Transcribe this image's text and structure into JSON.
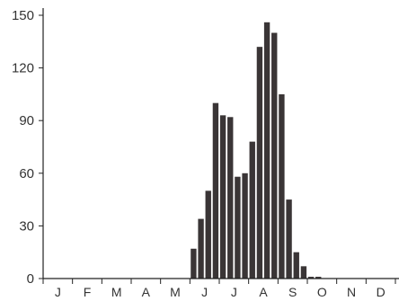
{
  "chart_data": {
    "type": "bar",
    "title": "",
    "xlabel": "",
    "ylabel": "",
    "ylim": [
      0,
      150
    ],
    "yticks": [
      0,
      30,
      60,
      90,
      120,
      150
    ],
    "month_labels": [
      "J",
      "F",
      "M",
      "A",
      "M",
      "J",
      "J",
      "A",
      "S",
      "O",
      "N",
      "D"
    ],
    "bar_color": "#3a3536",
    "axis_color": "#222222",
    "grid": false,
    "values": [
      0,
      0,
      0,
      0,
      0,
      0,
      0,
      0,
      0,
      0,
      0,
      0,
      0,
      0,
      0,
      0,
      0,
      0,
      0,
      0,
      17,
      34,
      50,
      100,
      93,
      92,
      58,
      60,
      78,
      132,
      146,
      140,
      105,
      45,
      15,
      7,
      1,
      1,
      0,
      0,
      0,
      0,
      0,
      0,
      0,
      0,
      0,
      0
    ]
  }
}
